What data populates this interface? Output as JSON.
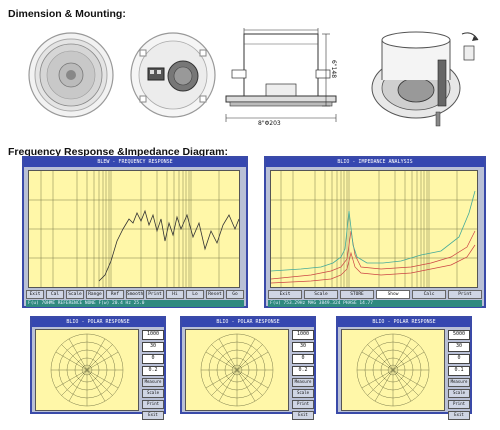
{
  "sections": {
    "dimension_title": "Dimension & Mounting:",
    "frequency_title": "Frequency Response &Impedance Diagram:"
  },
  "drawing": {
    "height_dim": "6\"148",
    "width_dim": "8\"Φ203"
  },
  "freq_window": {
    "title": "BLEW - FREQUENCY RESPONSE",
    "status": "F(u) 70HME REFERENCE  NONE  F(w) 20.4  Hz  25.0",
    "buttons": [
      "Exit",
      "Cal",
      "Scale",
      "Range",
      "Ref",
      "Smooth",
      "Print",
      "Hi",
      "Lo",
      "Reset",
      "Go"
    ]
  },
  "imp_window": {
    "title": "BLIO - IMPEDANCE ANALYSIS",
    "status": "F(u) 753.29Hz  MAG 3849.324  PHASE 14.77",
    "buttons": [
      "Exit",
      "Scale",
      "STORE",
      "Show",
      "Calc",
      "Print"
    ]
  },
  "polar_windows": [
    {
      "title": "BLIO - POLAR RESPONSE",
      "fields": [
        "1000",
        "30",
        "0",
        "0.2"
      ],
      "buttons": [
        "Measure",
        "Scale",
        "Print",
        "Exit"
      ]
    },
    {
      "title": "BLIO - POLAR RESPONSE",
      "fields": [
        "1000",
        "30",
        "0",
        "0.2"
      ],
      "buttons": [
        "Measure",
        "Scale",
        "Print",
        "Exit"
      ]
    },
    {
      "title": "BLIO - POLAR RESPONSE",
      "fields": [
        "5000",
        "30",
        "0",
        "0.1"
      ],
      "buttons": [
        "Measure",
        "Scale",
        "Print",
        "Exit"
      ]
    }
  ],
  "colors": {
    "plot_bg": "#fff7a8",
    "titlebar": "#3547b0",
    "statusbar": "#2f8a7f"
  }
}
